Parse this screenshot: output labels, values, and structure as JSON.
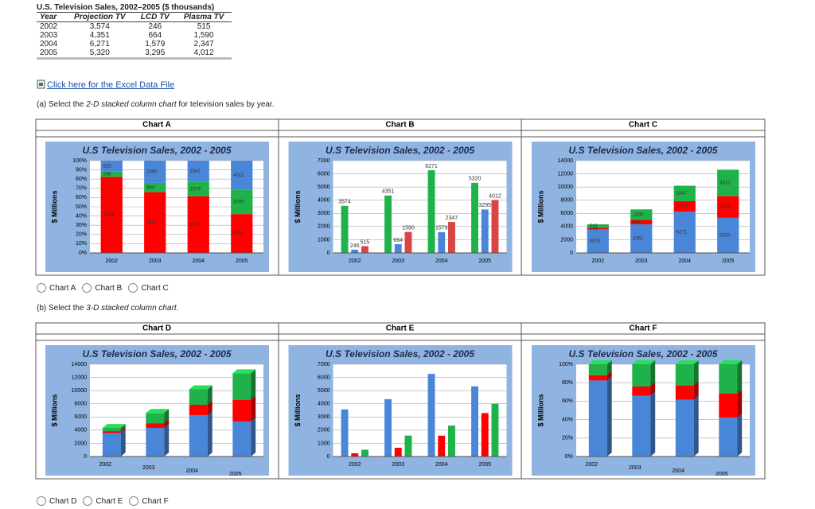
{
  "table": {
    "title": "U.S. Television Sales, 2002–2005 ($ thousands)",
    "header": [
      "Year",
      "Projection TV",
      "LCD TV",
      "Plasma TV"
    ],
    "rows": [
      [
        "2002",
        "3,574",
        "246",
        "515"
      ],
      [
        "2003",
        "4,351",
        "664",
        "1,590"
      ],
      [
        "2004",
        "6,271",
        "1,579",
        "2,347"
      ],
      [
        "2005",
        "5,320",
        "3,295",
        "4,012"
      ]
    ]
  },
  "link": "Click here for the Excel Data File",
  "question_a": {
    "prefix": "(a)  Select the ",
    "emphasis": "2-D stacked column chart",
    "suffix": " for television sales by year."
  },
  "options_a": [
    "Chart A",
    "Chart B",
    "Chart C"
  ],
  "question_b": {
    "prefix": "(b)  Select the ",
    "emphasis": "3-D stacked column chart",
    "suffix": "."
  },
  "options_b": [
    "Chart D",
    "Chart E",
    "Chart F"
  ],
  "chart_data": [
    {
      "panel": "Chart A",
      "type": "bar",
      "mode": "percent",
      "three_d": false,
      "labels": "inside",
      "title": "U.S Television Sales, 2002 - 2005",
      "y_label": "$ Millions",
      "categories": [
        "2002",
        "2003",
        "2004",
        "2005"
      ],
      "series": [
        {
          "color": "#ff0000",
          "values": [
            3574,
            4351,
            6271,
            5320
          ]
        },
        {
          "color": "#1fb24a",
          "values": [
            246,
            664,
            1579,
            3295
          ]
        },
        {
          "color": "#4a86d8",
          "values": [
            515,
            1590,
            2347,
            4012
          ]
        }
      ],
      "ylim": [
        0,
        100
      ],
      "yticks": [
        {
          "value": 0,
          "label": "0%"
        },
        {
          "value": 10,
          "label": "10%"
        },
        {
          "value": 20,
          "label": "20%"
        },
        {
          "value": 30,
          "label": "30%"
        },
        {
          "value": 40,
          "label": "40%"
        },
        {
          "value": 50,
          "label": "50%"
        },
        {
          "value": 60,
          "label": "60%"
        },
        {
          "value": 70,
          "label": "70%"
        },
        {
          "value": 80,
          "label": "80%"
        },
        {
          "value": 90,
          "label": "90%"
        },
        {
          "value": 100,
          "label": "100%"
        }
      ]
    },
    {
      "panel": "Chart B",
      "type": "bar",
      "mode": "grouped",
      "three_d": false,
      "labels": "top",
      "title": "U.S Television Sales, 2002 - 2005",
      "y_label": "$ Millions",
      "categories": [
        "2002",
        "2003",
        "2004",
        "2005"
      ],
      "series": [
        {
          "color": "#1fb24a",
          "values": [
            3574,
            4351,
            6271,
            5320
          ]
        },
        {
          "color": "#4a86d8",
          "values": [
            246,
            664,
            1579,
            3295
          ]
        },
        {
          "color": "#d94545",
          "values": [
            515,
            1590,
            2347,
            4012
          ]
        }
      ],
      "ylim": [
        0,
        7000
      ],
      "yticks": [
        0,
        1000,
        2000,
        3000,
        4000,
        5000,
        6000,
        7000
      ]
    },
    {
      "panel": "Chart C",
      "type": "bar",
      "mode": "stacked",
      "three_d": false,
      "labels": "inside",
      "title": "U.S Television Sales, 2002 - 2005",
      "y_label": "$ Millions",
      "categories": [
        "2002",
        "2003",
        "2004",
        "2005"
      ],
      "series": [
        {
          "color": "#4a86d8",
          "values": [
            3574,
            4351,
            6271,
            5320
          ]
        },
        {
          "color": "#ff0000",
          "values": [
            246,
            664,
            1579,
            3295
          ]
        },
        {
          "color": "#1fb24a",
          "values": [
            515,
            1590,
            2347,
            4012
          ]
        }
      ],
      "ylim": [
        0,
        14000
      ],
      "yticks": [
        0,
        2000,
        4000,
        6000,
        8000,
        10000,
        12000,
        14000
      ]
    },
    {
      "panel": "Chart D",
      "type": "bar",
      "mode": "stacked",
      "three_d": true,
      "labels": "none",
      "title": "U.S Television Sales, 2002 - 2005",
      "y_label": "$ Millions",
      "categories": [
        "2002",
        "2003",
        "2004",
        "2005"
      ],
      "series": [
        {
          "color": "#4a86d8",
          "values": [
            3574,
            4351,
            6271,
            5320
          ]
        },
        {
          "color": "#ff0000",
          "values": [
            246,
            664,
            1579,
            3295
          ]
        },
        {
          "color": "#1fb24a",
          "values": [
            515,
            1590,
            2347,
            4012
          ]
        }
      ],
      "ylim": [
        0,
        14000
      ],
      "yticks": [
        0,
        2000,
        4000,
        6000,
        8000,
        10000,
        12000,
        14000
      ]
    },
    {
      "panel": "Chart E",
      "type": "bar",
      "mode": "grouped",
      "three_d": false,
      "labels": "none",
      "title": "U.S Television Sales, 2002 - 2005",
      "y_label": "$ Millions",
      "categories": [
        "2002",
        "2003",
        "2004",
        "2005"
      ],
      "series": [
        {
          "color": "#4a86d8",
          "values": [
            3574,
            4351,
            6271,
            5320
          ]
        },
        {
          "color": "#ff0000",
          "values": [
            246,
            664,
            1579,
            3295
          ]
        },
        {
          "color": "#1fb24a",
          "values": [
            515,
            1590,
            2347,
            4012
          ]
        }
      ],
      "ylim": [
        0,
        7000
      ],
      "yticks": [
        0,
        1000,
        2000,
        3000,
        4000,
        5000,
        6000,
        7000
      ]
    },
    {
      "panel": "Chart F",
      "type": "bar",
      "mode": "percent",
      "three_d": true,
      "labels": "none",
      "title": "U.S Television Sales, 2002 - 2005",
      "y_label": "$ Millions",
      "categories": [
        "2002",
        "2003",
        "2004",
        "2005"
      ],
      "series": [
        {
          "color": "#4a86d8",
          "values": [
            3574,
            4351,
            6271,
            5320
          ]
        },
        {
          "color": "#ff0000",
          "values": [
            246,
            664,
            1579,
            3295
          ]
        },
        {
          "color": "#1fb24a",
          "values": [
            515,
            1590,
            2347,
            4012
          ]
        }
      ],
      "ylim": [
        0,
        100
      ],
      "yticks": [
        {
          "value": 0,
          "label": "0%"
        },
        {
          "value": 20,
          "label": "20%"
        },
        {
          "value": 40,
          "label": "40%"
        },
        {
          "value": 60,
          "label": "60%"
        },
        {
          "value": 80,
          "label": "80%"
        },
        {
          "value": 100,
          "label": "100%"
        }
      ]
    }
  ]
}
